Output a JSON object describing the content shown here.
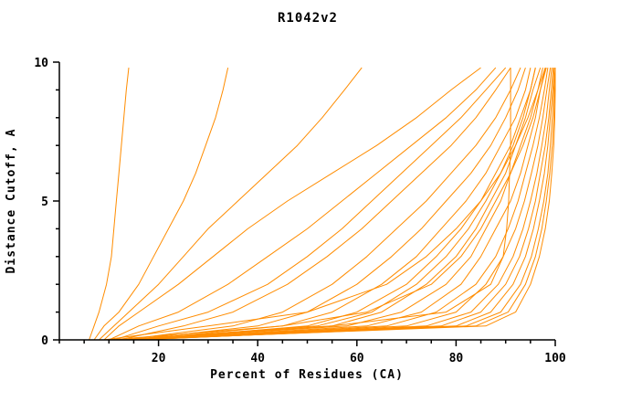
{
  "chart_data": {
    "type": "line",
    "title": "R1042v2",
    "xlabel": "Percent of Residues (CA)",
    "ylabel": "Distance Cutoff, A",
    "xlim": [
      0,
      100
    ],
    "ylim": [
      0,
      10
    ],
    "x_ticks": [
      20,
      40,
      60,
      80,
      100
    ],
    "y_ticks": [
      0,
      5,
      10
    ],
    "x_minor_step": 5,
    "y_minor_step": 1,
    "line_color": "#FF8C00",
    "axis_color": "#000000",
    "legend": "none",
    "grid": false,
    "y_cutoffs": [
      0,
      0.5,
      1,
      2,
      3,
      4,
      5,
      6,
      7,
      8,
      9,
      9.8
    ],
    "series": [
      [
        6,
        7,
        8,
        9.5,
        10.5,
        11,
        11.5,
        12,
        12.5,
        13,
        13.5,
        14
      ],
      [
        7,
        9,
        12,
        16,
        19,
        22,
        25,
        27.5,
        29.5,
        31.5,
        33,
        34
      ],
      [
        8,
        11,
        14,
        20,
        25,
        30,
        36,
        42,
        48,
        53,
        57.5,
        61
      ],
      [
        9,
        12,
        16,
        24,
        31,
        38,
        46,
        55,
        64,
        72,
        79,
        85
      ],
      [
        10,
        16,
        24,
        34,
        42,
        50,
        57,
        64,
        71,
        78,
        84,
        88
      ],
      [
        11,
        20,
        30,
        42,
        50,
        57,
        63,
        69,
        75,
        81,
        86,
        90
      ],
      [
        12,
        25,
        35,
        46,
        54,
        61,
        67,
        73,
        79,
        84,
        88,
        91
      ],
      [
        12,
        55,
        78,
        87,
        89.5,
        90.2,
        90.6,
        90.8,
        91,
        91,
        91,
        91
      ],
      [
        13,
        35,
        45,
        55,
        62,
        68,
        74,
        79,
        84,
        88,
        91,
        93
      ],
      [
        14,
        40,
        50,
        60,
        67,
        73,
        78,
        83,
        87,
        90,
        92.5,
        94
      ],
      [
        15,
        45,
        55,
        65,
        72,
        77,
        82,
        86,
        89,
        92,
        94,
        95
      ],
      [
        16,
        50,
        60,
        70,
        76,
        81,
        85,
        88,
        91,
        93,
        95,
        96
      ],
      [
        9,
        30,
        50,
        66,
        74,
        80,
        85,
        89,
        92,
        94.5,
        96.5,
        98
      ],
      [
        10,
        45,
        62,
        75,
        81,
        85,
        88,
        91,
        93.5,
        95.5,
        97,
        98.2
      ],
      [
        13,
        52,
        63,
        72,
        78,
        82.5,
        86,
        89,
        91.5,
        93.5,
        95,
        96
      ],
      [
        14,
        55,
        65,
        74,
        80,
        84,
        87,
        90,
        92,
        94,
        95.5,
        97
      ],
      [
        14,
        58,
        69,
        78,
        83,
        86,
        89,
        91,
        93,
        95,
        96.5,
        97.5
      ],
      [
        15,
        62,
        73,
        81,
        85,
        88,
        91,
        93,
        94.5,
        96,
        97,
        98
      ],
      [
        15,
        66,
        76,
        84,
        88,
        90.5,
        92.5,
        94,
        95.5,
        96.8,
        97.8,
        98.5
      ],
      [
        15,
        70,
        80,
        86,
        89.5,
        92,
        93.8,
        95.2,
        96.5,
        97.5,
        98.3,
        99
      ],
      [
        16,
        74,
        83,
        88.5,
        91.5,
        93.5,
        95,
        96.3,
        97.3,
        98.2,
        98.8,
        99.3
      ],
      [
        16,
        77,
        85,
        90,
        92.8,
        94.6,
        96,
        97,
        98,
        98.7,
        99.2,
        99.6
      ],
      [
        16,
        80,
        87,
        91.5,
        94,
        95.6,
        96.8,
        97.8,
        98.5,
        99,
        99.5,
        99.8
      ],
      [
        15,
        82,
        89,
        93,
        95.2,
        96.6,
        97.7,
        98.5,
        99,
        99.4,
        99.7,
        100
      ],
      [
        14,
        84,
        90.5,
        94,
        96,
        97.3,
        98.2,
        98.9,
        99.4,
        99.7,
        99.9,
        100
      ],
      [
        13,
        86,
        92,
        95,
        96.8,
        98,
        98.8,
        99.3,
        99.7,
        99.9,
        100,
        100
      ]
    ]
  }
}
